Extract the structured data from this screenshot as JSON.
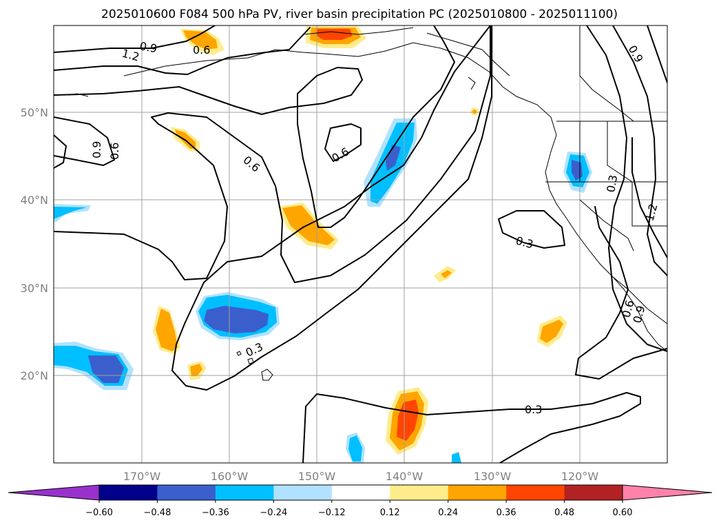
{
  "title": "2025010600 F084 500 hPa PV, river basin precipitation PC (2025010800 - 2025011100)",
  "map": {
    "lon_range": [
      -180,
      -110
    ],
    "lat_range": [
      10,
      60
    ],
    "lon_ticks": [
      -170,
      -160,
      -150,
      -140,
      -130,
      -120
    ],
    "lon_tick_labels": [
      "170°W",
      "160°W",
      "150°W",
      "140°W",
      "130°W",
      "120°W"
    ],
    "lat_ticks": [
      20,
      30,
      40,
      50
    ],
    "lat_tick_labels": [
      "20°N",
      "30°N",
      "40°N",
      "50°N"
    ],
    "gridlines": true,
    "contour_labels": [
      "0.9",
      "0.6",
      "1.2",
      "0.9",
      "0.6",
      "0.9",
      "0.6",
      "0.6",
      "0.3",
      "0.3",
      "0.3",
      "1.2",
      "0.6",
      "0.9",
      "0.3",
      "0.3"
    ]
  },
  "colorbar": {
    "tick_labels": [
      "−0.60",
      "−0.48",
      "−0.36",
      "−0.24",
      "−0.12",
      "0.12",
      "0.24",
      "0.36",
      "0.48",
      "0.60"
    ],
    "colors": [
      "#9932cc",
      "#00008b",
      "#3a5fcd",
      "#00bfff",
      "#b0e2ff",
      "#ffffff",
      "#ffec8b",
      "#ffa500",
      "#ff4500",
      "#b22222",
      "#ff82ab"
    ],
    "extend": "both"
  }
}
